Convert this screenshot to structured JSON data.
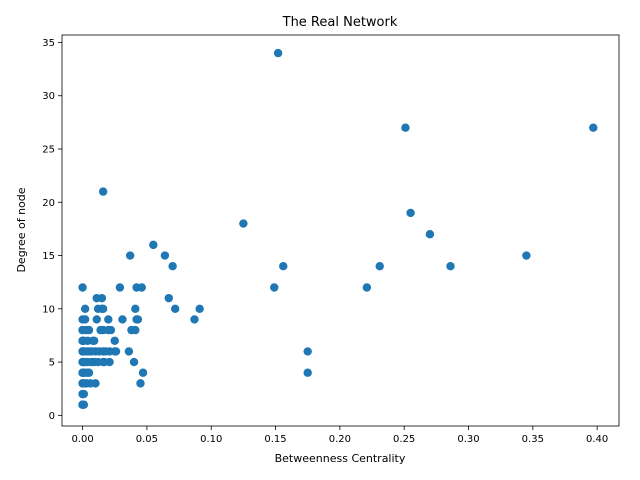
{
  "chart_data": {
    "type": "scatter",
    "title": "The Real Network",
    "xlabel": "Betweenness Centrality",
    "ylabel": "Degree of node",
    "xlim": [
      -0.016,
      0.417
    ],
    "ylim": [
      -1,
      35.7
    ],
    "xticks": [
      "0.00",
      "0.05",
      "0.10",
      "0.15",
      "0.20",
      "0.25",
      "0.30",
      "0.35",
      "0.40"
    ],
    "yticks": [
      "0",
      "5",
      "10",
      "15",
      "20",
      "25",
      "30",
      "35"
    ],
    "grid": false,
    "point_color": "#1f77b4",
    "points": [
      [
        0.0,
        1
      ],
      [
        0.0,
        1
      ],
      [
        0.0,
        1
      ],
      [
        0.0,
        1
      ],
      [
        0.0,
        2
      ],
      [
        0.0,
        2
      ],
      [
        0.0,
        3
      ],
      [
        0.0,
        3
      ],
      [
        0.0,
        4
      ],
      [
        0.0,
        4
      ],
      [
        0.0,
        5
      ],
      [
        0.0,
        5
      ],
      [
        0.0,
        6
      ],
      [
        0.0,
        6
      ],
      [
        0.0,
        7
      ],
      [
        0.0,
        7
      ],
      [
        0.0,
        8
      ],
      [
        0.0,
        8
      ],
      [
        0.0,
        9
      ],
      [
        0.0,
        12
      ],
      [
        0.001,
        1
      ],
      [
        0.001,
        2
      ],
      [
        0.001,
        3
      ],
      [
        0.001,
        4
      ],
      [
        0.001,
        5
      ],
      [
        0.001,
        6
      ],
      [
        0.001,
        7
      ],
      [
        0.002,
        4
      ],
      [
        0.002,
        5
      ],
      [
        0.002,
        9
      ],
      [
        0.002,
        10
      ],
      [
        0.003,
        3
      ],
      [
        0.003,
        6
      ],
      [
        0.003,
        8
      ],
      [
        0.004,
        4
      ],
      [
        0.004,
        5
      ],
      [
        0.004,
        7
      ],
      [
        0.005,
        4
      ],
      [
        0.005,
        6
      ],
      [
        0.005,
        8
      ],
      [
        0.006,
        3
      ],
      [
        0.007,
        5
      ],
      [
        0.007,
        6
      ],
      [
        0.008,
        7
      ],
      [
        0.009,
        5
      ],
      [
        0.009,
        7
      ],
      [
        0.01,
        3
      ],
      [
        0.01,
        6
      ],
      [
        0.011,
        9
      ],
      [
        0.011,
        11
      ],
      [
        0.012,
        5
      ],
      [
        0.012,
        10
      ],
      [
        0.013,
        6
      ],
      [
        0.014,
        8
      ],
      [
        0.015,
        10
      ],
      [
        0.015,
        11
      ],
      [
        0.016,
        5
      ],
      [
        0.016,
        6
      ],
      [
        0.016,
        8
      ],
      [
        0.016,
        10
      ],
      [
        0.016,
        21
      ],
      [
        0.017,
        5
      ],
      [
        0.018,
        6
      ],
      [
        0.02,
        8
      ],
      [
        0.02,
        9
      ],
      [
        0.021,
        5
      ],
      [
        0.021,
        6
      ],
      [
        0.022,
        8
      ],
      [
        0.025,
        7
      ],
      [
        0.025,
        6
      ],
      [
        0.026,
        6
      ],
      [
        0.029,
        12
      ],
      [
        0.031,
        9
      ],
      [
        0.036,
        6
      ],
      [
        0.037,
        15
      ],
      [
        0.038,
        8
      ],
      [
        0.04,
        5
      ],
      [
        0.041,
        8
      ],
      [
        0.041,
        10
      ],
      [
        0.042,
        12
      ],
      [
        0.042,
        9
      ],
      [
        0.043,
        9
      ],
      [
        0.045,
        3
      ],
      [
        0.046,
        12
      ],
      [
        0.047,
        4
      ],
      [
        0.055,
        16
      ],
      [
        0.064,
        15
      ],
      [
        0.067,
        11
      ],
      [
        0.07,
        14
      ],
      [
        0.072,
        10
      ],
      [
        0.087,
        9
      ],
      [
        0.091,
        10
      ],
      [
        0.125,
        18
      ],
      [
        0.149,
        12
      ],
      [
        0.152,
        34
      ],
      [
        0.156,
        14
      ],
      [
        0.175,
        6
      ],
      [
        0.175,
        4
      ],
      [
        0.221,
        12
      ],
      [
        0.231,
        14
      ],
      [
        0.251,
        27
      ],
      [
        0.255,
        19
      ],
      [
        0.27,
        17
      ],
      [
        0.286,
        14
      ],
      [
        0.345,
        15
      ],
      [
        0.397,
        27
      ]
    ]
  }
}
